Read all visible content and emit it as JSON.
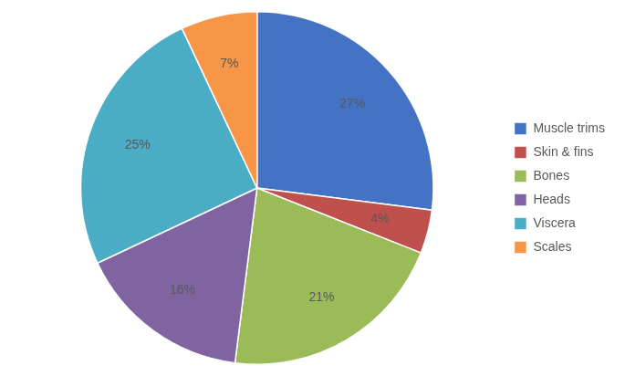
{
  "chart_data": {
    "type": "pie",
    "categories": [
      "Muscle trims",
      "Skin & fins",
      "Bones",
      "Heads",
      "Viscera",
      "Scales"
    ],
    "values": [
      27,
      4,
      21,
      16,
      25,
      7
    ],
    "value_labels": [
      "27%",
      "4%",
      "21%",
      "16%",
      "25%",
      "7%"
    ],
    "colors": [
      "#4472C4",
      "#C0504D",
      "#9BBB59",
      "#8064A2",
      "#4BACC6",
      "#F79646"
    ],
    "data_labels": true,
    "legend": "right"
  }
}
